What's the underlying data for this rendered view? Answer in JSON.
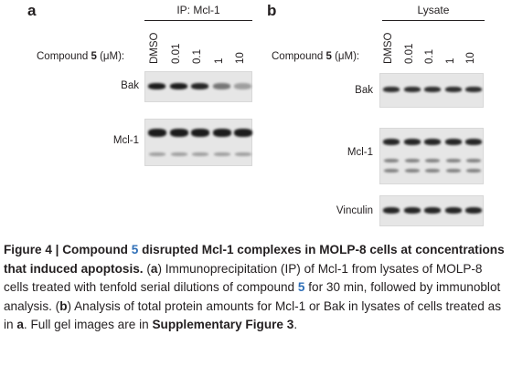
{
  "panel_a": {
    "letter": "a",
    "group_label": "IP: Mcl-1",
    "compound_label_pre": "Compound ",
    "compound_num": "5",
    "compound_label_post": " (μM):",
    "lanes": [
      "DMSO",
      "0.01",
      "0.1",
      "1",
      "10"
    ],
    "blots": [
      {
        "label": "Bak",
        "bands": [
          {
            "intensity": 1.0
          },
          {
            "intensity": 1.0
          },
          {
            "intensity": 0.95
          },
          {
            "intensity": 0.55
          },
          {
            "intensity": 0.35
          }
        ]
      },
      {
        "label": "Mcl-1",
        "bands": [
          {
            "intensity": 1.0
          },
          {
            "intensity": 1.0
          },
          {
            "intensity": 1.0
          },
          {
            "intensity": 1.0
          },
          {
            "intensity": 1.0
          }
        ]
      }
    ]
  },
  "panel_b": {
    "letter": "b",
    "group_label": "Lysate",
    "compound_label_pre": "Compound ",
    "compound_num": "5",
    "compound_label_post": " (μM):",
    "lanes": [
      "DMSO",
      "0.01",
      "0.1",
      "1",
      "10"
    ],
    "blots": [
      {
        "label": "Bak"
      },
      {
        "label": "Mcl-1"
      },
      {
        "label": "Vinculin"
      }
    ]
  },
  "caption": {
    "fig": "Figure 4 | Compound ",
    "num": "5",
    "title_rest": " disrupted Mcl-1 complexes in MOLP-8 cells at concentrations that induced apoptosis.",
    "a_open": " (",
    "a_letter": "a",
    "a_text": ") Immunoprecipitation (IP) of Mcl-1 from lysates of MOLP-8 cells treated with tenfold serial dilutions of compound ",
    "num2": "5",
    "a_text2": " for 30 min, followed by immunoblot analysis. (",
    "b_letter": "b",
    "b_text": ") Analysis of total protein amounts for Mcl-1 or Bak in lysates of cells treated as in ",
    "a_ref": "a",
    "b_text2": ". Full gel images are in ",
    "supp": "Supplementary Figure 3",
    "end": "."
  }
}
